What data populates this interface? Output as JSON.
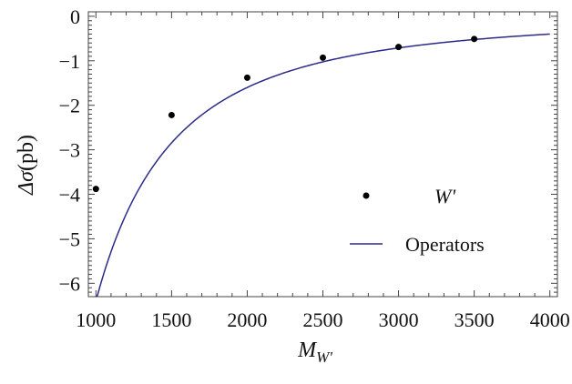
{
  "chart_data": {
    "type": "scatter",
    "xlabel": "M",
    "xlabel_sub": "W'",
    "ylabel_symbol": "Δσ",
    "ylabel_unit": "(pb)",
    "xlim": [
      950,
      4050
    ],
    "ylim": [
      -6.3,
      0.1
    ],
    "x_ticks": [
      1000,
      1500,
      2000,
      2500,
      3000,
      3500,
      4000
    ],
    "x_tick_labels": [
      "1000",
      "1500",
      "2000",
      "2500",
      "3000",
      "3500",
      "4000"
    ],
    "y_ticks": [
      0,
      -1,
      -2,
      -3,
      -4,
      -5,
      -6
    ],
    "y_tick_labels": [
      "0",
      "−1",
      "−2",
      "−3",
      "−4",
      "−5",
      "−6"
    ],
    "legend_position": "right",
    "series": [
      {
        "name": "W'",
        "kind": "points",
        "color": "#000000",
        "x": [
          1000,
          1500,
          2000,
          2500,
          3000,
          3500
        ],
        "y": [
          -3.88,
          -2.22,
          -1.38,
          -0.93,
          -0.69,
          -0.51
        ]
      },
      {
        "name": "Operators",
        "kind": "line",
        "color": "#2a2a8a",
        "function": "-6.4e6/x^2",
        "x_range": [
          1000,
          4000
        ]
      }
    ]
  }
}
